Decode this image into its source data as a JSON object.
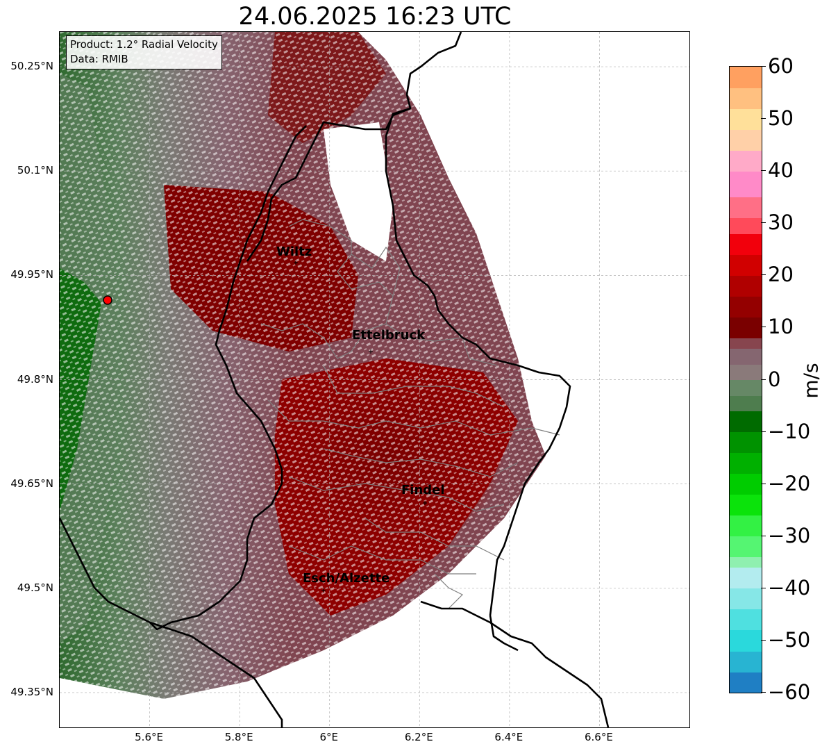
{
  "title": "24.06.2025 16:23 UTC",
  "info": {
    "product": "Product: 1.2° Radial Velocity",
    "data": "Data: RMIB"
  },
  "map": {
    "projection": "PlateCarree",
    "extent": {
      "lon_min": 5.4,
      "lon_max": 6.8,
      "lat_min": 49.3,
      "lat_max": 50.3
    },
    "lon_ticks": [
      {
        "value": 5.6,
        "label": "5.6°E"
      },
      {
        "value": 5.8,
        "label": "5.8°E"
      },
      {
        "value": 6.0,
        "label": "6°E"
      },
      {
        "value": 6.2,
        "label": "6.2°E"
      },
      {
        "value": 6.4,
        "label": "6.4°E"
      },
      {
        "value": 6.6,
        "label": "6.6°E"
      }
    ],
    "lat_ticks": [
      {
        "value": 50.25,
        "label": "50.25°N"
      },
      {
        "value": 50.1,
        "label": "50.1°N"
      },
      {
        "value": 49.95,
        "label": "49.95°N"
      },
      {
        "value": 49.8,
        "label": "49.8°N"
      },
      {
        "value": 49.65,
        "label": "49.65°N"
      },
      {
        "value": 49.5,
        "label": "49.5°N"
      },
      {
        "value": 49.35,
        "label": "49.35°N"
      }
    ],
    "gridlines": true,
    "radar_site": {
      "lon": 5.505,
      "lat": 49.914,
      "marker": "red-circle"
    },
    "cities": [
      {
        "name": "Wiltz",
        "lon": 5.93,
        "lat": 49.97
      },
      {
        "name": "Ettelbruck",
        "lon": 6.1,
        "lat": 49.85
      },
      {
        "name": "Findel",
        "lon": 6.21,
        "lat": 49.63
      },
      {
        "name": "Esch/Alzette",
        "lon": 5.98,
        "lat": 49.5
      }
    ],
    "colors": {
      "country_border": "#000000",
      "admin_border": "#808080",
      "grid": "#b0b0b0",
      "radar_marker": "#ff0000"
    }
  },
  "colorbar": {
    "label": "m/s",
    "vmin": -60,
    "vmax": 60,
    "ticks": [
      {
        "value": 60,
        "label": "60"
      },
      {
        "value": 50,
        "label": "50"
      },
      {
        "value": 40,
        "label": "40"
      },
      {
        "value": 30,
        "label": "30"
      },
      {
        "value": 20,
        "label": "20"
      },
      {
        "value": 10,
        "label": "10"
      },
      {
        "value": 0,
        "label": "0"
      },
      {
        "value": -10,
        "label": "−10"
      },
      {
        "value": -20,
        "label": "−20"
      },
      {
        "value": -30,
        "label": "−30"
      },
      {
        "value": -40,
        "label": "−40"
      },
      {
        "value": -50,
        "label": "−50"
      },
      {
        "value": -60,
        "label": "−60"
      }
    ],
    "stops": [
      {
        "from": -60,
        "to": -56,
        "color": "#1f7fc4"
      },
      {
        "from": -56,
        "to": -52,
        "color": "#28b4d2"
      },
      {
        "from": -52,
        "to": -48,
        "color": "#2ad9dc"
      },
      {
        "from": -48,
        "to": -44,
        "color": "#4fe0e0"
      },
      {
        "from": -44,
        "to": -40,
        "color": "#86e7e7"
      },
      {
        "from": -40,
        "to": -36,
        "color": "#b3ecef"
      },
      {
        "from": -36,
        "to": -34,
        "color": "#8ff0b0"
      },
      {
        "from": -34,
        "to": -30,
        "color": "#55f572"
      },
      {
        "from": -30,
        "to": -26,
        "color": "#33f144"
      },
      {
        "from": -26,
        "to": -22,
        "color": "#0be30b"
      },
      {
        "from": -22,
        "to": -18,
        "color": "#00cc00"
      },
      {
        "from": -18,
        "to": -14,
        "color": "#00b000"
      },
      {
        "from": -14,
        "to": -10,
        "color": "#009200"
      },
      {
        "from": -10,
        "to": -6,
        "color": "#006b00"
      },
      {
        "from": -6,
        "to": -3,
        "color": "#4e7d4e"
      },
      {
        "from": -3,
        "to": 0,
        "color": "#668866"
      },
      {
        "from": 0,
        "to": 3,
        "color": "#8a7a7a"
      },
      {
        "from": 3,
        "to": 6,
        "color": "#856670"
      },
      {
        "from": 6,
        "to": 8,
        "color": "#87454e"
      },
      {
        "from": 8,
        "to": 12,
        "color": "#7a0000"
      },
      {
        "from": 12,
        "to": 16,
        "color": "#940000"
      },
      {
        "from": 16,
        "to": 20,
        "color": "#b00000"
      },
      {
        "from": 20,
        "to": 24,
        "color": "#d10000"
      },
      {
        "from": 24,
        "to": 28,
        "color": "#f2000c"
      },
      {
        "from": 28,
        "to": 31,
        "color": "#ff4a5a"
      },
      {
        "from": 31,
        "to": 35,
        "color": "#ff6f86"
      },
      {
        "from": 35,
        "to": 40,
        "color": "#ff8ac8"
      },
      {
        "from": 40,
        "to": 44,
        "color": "#ffaac8"
      },
      {
        "from": 44,
        "to": 48,
        "color": "#ffd0a8"
      },
      {
        "from": 48,
        "to": 52,
        "color": "#ffe09a"
      },
      {
        "from": 52,
        "to": 56,
        "color": "#ffc080"
      },
      {
        "from": 56,
        "to": 60,
        "color": "#ffa060"
      }
    ]
  }
}
